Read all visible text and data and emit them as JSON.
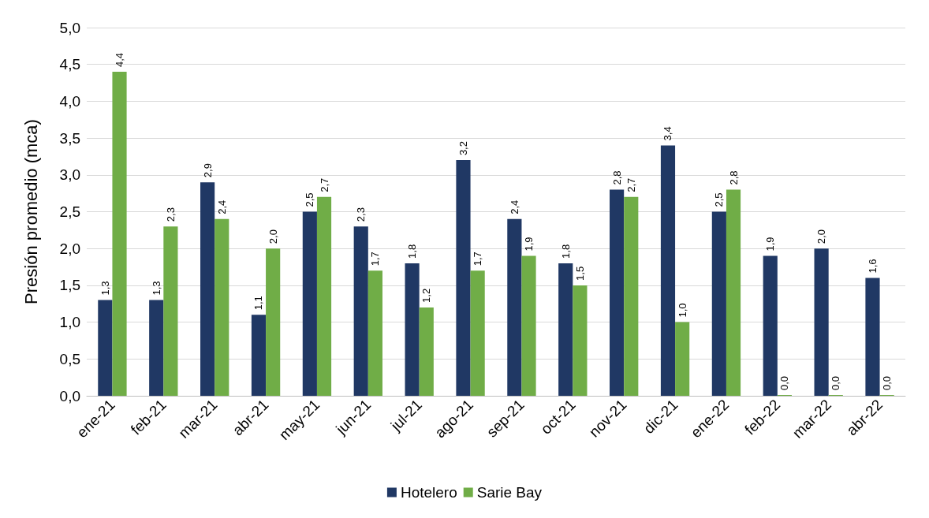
{
  "chart_data": {
    "type": "bar",
    "ylabel": "Presión promedio (mca)",
    "categories": [
      "ene-21",
      "feb-21",
      "mar-21",
      "abr-21",
      "may-21",
      "jun-21",
      "jul-21",
      "ago-21",
      "sep-21",
      "oct-21",
      "nov-21",
      "dic-21",
      "ene-22",
      "feb-22",
      "mar-22",
      "abr-22"
    ],
    "series": [
      {
        "name": "Hotelero",
        "color": "#203864",
        "values": [
          1.3,
          1.3,
          2.9,
          1.1,
          2.5,
          2.3,
          1.8,
          3.2,
          2.4,
          1.8,
          2.8,
          3.4,
          2.5,
          1.9,
          2.0,
          1.6
        ],
        "value_labels": [
          "1,3",
          "1,3",
          "2,9",
          "1,1",
          "2,5",
          "2,3",
          "1,8",
          "3,2",
          "2,4",
          "1,8",
          "2,8",
          "3,4",
          "2,5",
          "1,9",
          "2,0",
          "1,6"
        ]
      },
      {
        "name": "Sarie Bay",
        "color": "#70ad47",
        "values": [
          4.4,
          2.3,
          2.4,
          2.0,
          2.7,
          1.7,
          1.2,
          1.7,
          1.9,
          1.5,
          2.7,
          1.0,
          2.8,
          0.0,
          0.0,
          0.0
        ],
        "value_labels": [
          "4,4",
          "2,3",
          "2,4",
          "2,0",
          "2,7",
          "1,7",
          "1,2",
          "1,7",
          "1,9",
          "1,5",
          "2,7",
          "1,0",
          "2,8",
          "0,0",
          "0,0",
          "0,0"
        ]
      }
    ],
    "ylim": [
      0,
      5
    ],
    "yticks": [
      {
        "value": 0,
        "label": "0,0"
      },
      {
        "value": 0.5,
        "label": "0,5"
      },
      {
        "value": 1,
        "label": "1,0"
      },
      {
        "value": 1.5,
        "label": "1,5"
      },
      {
        "value": 2,
        "label": "2,0"
      },
      {
        "value": 2.5,
        "label": "2,5"
      },
      {
        "value": 3,
        "label": "3,0"
      },
      {
        "value": 3.5,
        "label": "3,5"
      },
      {
        "value": 4,
        "label": "4,0"
      },
      {
        "value": 4.5,
        "label": "4,5"
      },
      {
        "value": 5,
        "label": "5,0"
      }
    ],
    "grid": "y",
    "legend": "bottom"
  }
}
